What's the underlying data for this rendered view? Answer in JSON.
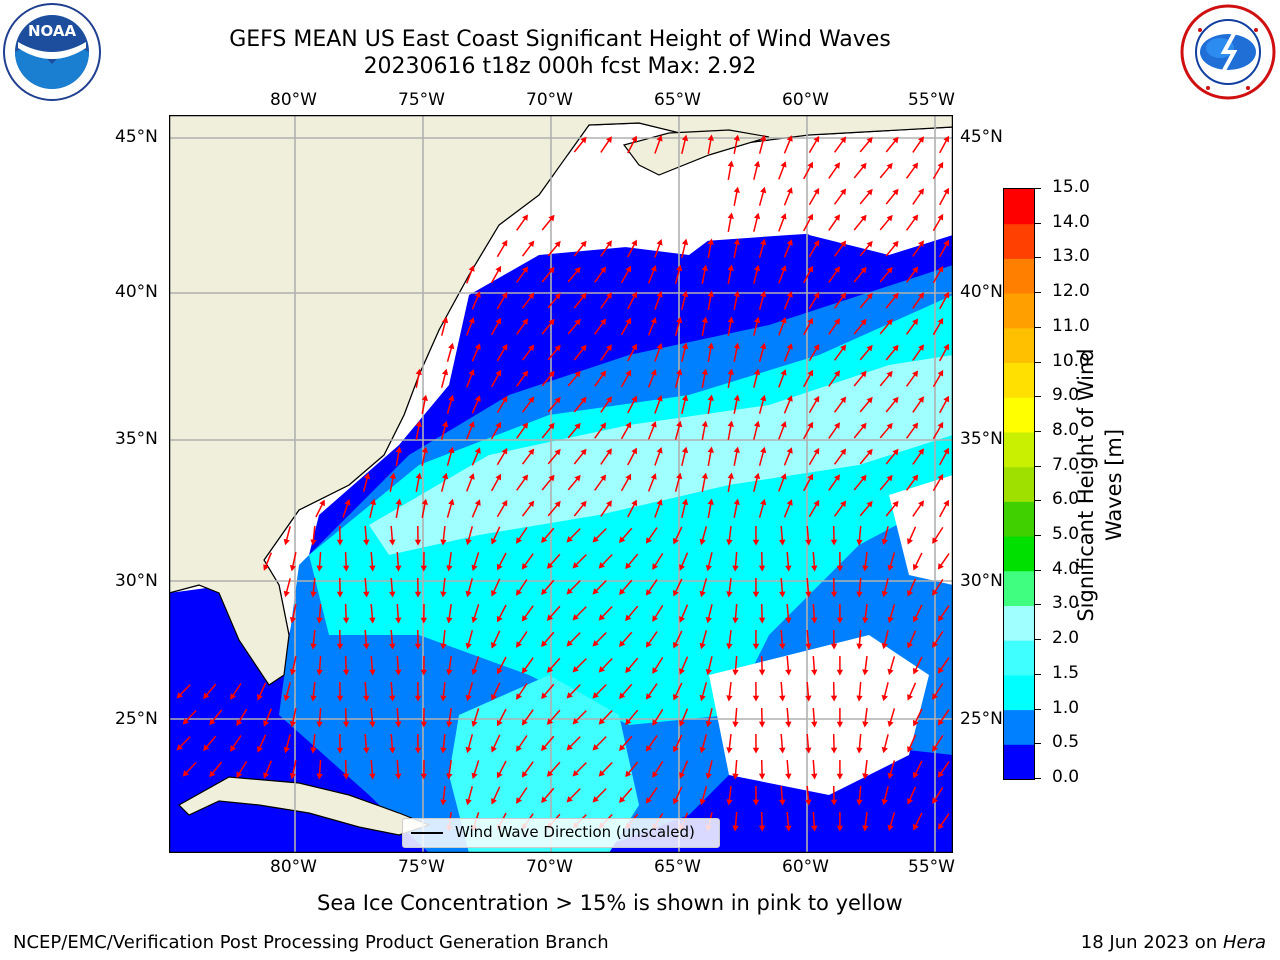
{
  "header": {
    "title_line1": "GEFS MEAN US East Coast Significant Height of Wind Waves",
    "title_line2": "20230616 t18z 000h fcst   Max: 2.92"
  },
  "logos": {
    "left": {
      "text": "NOAA",
      "ring_text": "NATIONAL OCEANIC AND ATMOSPHERIC ADMINISTRATION · U.S. DEPARTMENT OF COMMERCE",
      "icon": "noaa-logo-icon"
    },
    "right": {
      "ring_text": "NATIONAL WEATHER SERVICE",
      "icon": "nws-logo-icon"
    }
  },
  "map": {
    "lon_labels": [
      "80°W",
      "75°W",
      "70°W",
      "65°W",
      "60°W",
      "55°W"
    ],
    "lat_labels": [
      "45°N",
      "40°N",
      "35°N",
      "30°N",
      "25°N"
    ],
    "legend_label": "Wind Wave Direction (unscaled)",
    "colors": {
      "land": "#efefdc",
      "grid": "#b0b0b0",
      "arrow": "#ff0000",
      "coast": "#000000"
    }
  },
  "colorbar": {
    "label": "Significant Height of Wind Waves [m]",
    "label_line1": "Significant Height of Wind",
    "label_line2": "Waves [m]",
    "ticks": [
      "0.0",
      "0.5",
      "1.0",
      "1.5",
      "2.0",
      "3.0",
      "4.0",
      "5.0",
      "6.0",
      "7.0",
      "8.0",
      "9.0",
      "10.0",
      "11.0",
      "12.0",
      "13.0",
      "14.0",
      "15.0"
    ],
    "colors": [
      "#0000ff",
      "#0080ff",
      "#00ffff",
      "#40ffff",
      "#a0ffff",
      "#40ff80",
      "#00e000",
      "#40d000",
      "#a0e000",
      "#c8f000",
      "#ffff00",
      "#ffe000",
      "#ffc000",
      "#ffa000",
      "#ff8000",
      "#ff4000",
      "#ff0000"
    ]
  },
  "footer": {
    "note": "Sea Ice Concentration > 15% is shown in pink to yellow",
    "left": "NCEP/EMC/Verification Post Processing Product Generation Branch",
    "right_prefix": "18 Jun 2023 on ",
    "right_host": "Hera"
  }
}
